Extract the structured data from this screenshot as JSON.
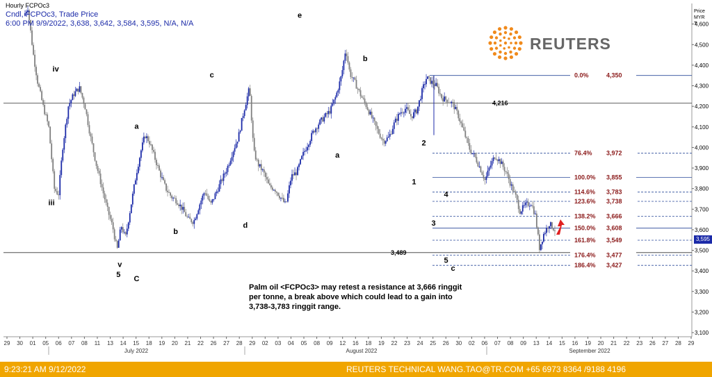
{
  "header": {
    "title": "Hourly FCPOc3",
    "line1": "Cndl, FCPOc3, Trade Price",
    "line2": "6:00 PM 9/9/2022, 3,638, 3,642, 3,584, 3,595, N/A, N/A"
  },
  "logo": {
    "text": "REUTERS",
    "color": "#f08a1c",
    "icon": "reuters-dot-logo-icon"
  },
  "yaxis": {
    "label_line1": "Price",
    "label_line2": "MYR",
    "label_line3": "T",
    "last_price_badge": "3,595"
  },
  "annotation": {
    "text_line1": "Palm oil <FCPOc3> may retest a resistance at 3,666 ringgit",
    "text_line2": "per tonne,  a break above which could lead to a gain into",
    "text_line3": " 3,738-3,783 ringgit range."
  },
  "footer": {
    "timestamp": "9:23:21 AM 9/12/2022",
    "credit": "REUTERS TECHNICAL  WANG.TAO@TR.COM  +65 6973 8364 /9188 4196",
    "background": "#f0a500"
  },
  "chart_data": {
    "type": "candlestick",
    "title": "Hourly FCPOc3",
    "ylabel": "Price MYR T",
    "ylim": [
      3080,
      4700
    ],
    "yticks": [
      3100,
      3200,
      3300,
      3400,
      3500,
      3600,
      3700,
      3800,
      3900,
      4000,
      4100,
      4200,
      4300,
      4400,
      4500,
      4600
    ],
    "ytick_labels": [
      "3,100",
      "3,200",
      "3,300",
      "3,400",
      "3,500",
      "3,600",
      "3,700",
      "3,800",
      "3,900",
      "4,000",
      "4,100",
      "4,200",
      "4,300",
      "4,400",
      "4,500",
      "4,600"
    ],
    "xtick_labels": [
      "29",
      "30",
      "01",
      "05",
      "06",
      "07",
      "08",
      "11",
      "13",
      "14",
      "15",
      "18",
      "19",
      "20",
      "21",
      "22",
      "26",
      "27",
      "28",
      "29",
      "02",
      "03",
      "04",
      "05",
      "08",
      "09",
      "12",
      "16",
      "18",
      "19",
      "22",
      "23",
      "24",
      "25",
      "26",
      "30",
      "02",
      "06",
      "07",
      "08",
      "09",
      "13",
      "14",
      "15",
      "16",
      "19",
      "20",
      "21",
      "22",
      "23",
      "26",
      "27",
      "28",
      "29"
    ],
    "month_labels": [
      "July 2022",
      "August 2022",
      "September 2022"
    ],
    "candle_color_up": "#1b2aa8",
    "candle_color_down": "#7f7f7f",
    "path_points": [
      [
        0,
        4640
      ],
      [
        3,
        4680
      ],
      [
        7,
        4450
      ],
      [
        10,
        4320
      ],
      [
        14,
        4200
      ],
      [
        18,
        4100
      ],
      [
        22,
        3800
      ],
      [
        25,
        3770
      ],
      [
        28,
        4000
      ],
      [
        32,
        4200
      ],
      [
        36,
        4260
      ],
      [
        40,
        4290
      ],
      [
        44,
        4200
      ],
      [
        48,
        4050
      ],
      [
        52,
        3920
      ],
      [
        56,
        3810
      ],
      [
        60,
        3700
      ],
      [
        64,
        3610
      ],
      [
        67,
        3500
      ],
      [
        70,
        3620
      ],
      [
        73,
        3560
      ],
      [
        77,
        3720
      ],
      [
        81,
        3880
      ],
      [
        84,
        3980
      ],
      [
        87,
        4060
      ],
      [
        90,
        4030
      ],
      [
        94,
        3950
      ],
      [
        98,
        3870
      ],
      [
        102,
        3800
      ],
      [
        106,
        3760
      ],
      [
        110,
        3740
      ],
      [
        114,
        3700
      ],
      [
        118,
        3650
      ],
      [
        122,
        3640
      ],
      [
        126,
        3720
      ],
      [
        130,
        3790
      ],
      [
        134,
        3720
      ],
      [
        138,
        3780
      ],
      [
        142,
        3840
      ],
      [
        146,
        3900
      ],
      [
        150,
        3980
      ],
      [
        154,
        4050
      ],
      [
        158,
        4180
      ],
      [
        162,
        4290
      ],
      [
        165,
        3980
      ],
      [
        168,
        3920
      ],
      [
        172,
        3880
      ],
      [
        176,
        3810
      ],
      [
        180,
        3800
      ],
      [
        184,
        3760
      ],
      [
        188,
        3720
      ],
      [
        192,
        3860
      ],
      [
        196,
        3880
      ],
      [
        200,
        3960
      ],
      [
        204,
        4020
      ],
      [
        208,
        4080
      ],
      [
        212,
        4120
      ],
      [
        216,
        4150
      ],
      [
        220,
        4180
      ],
      [
        224,
        4250
      ],
      [
        228,
        4350
      ],
      [
        231,
        4480
      ],
      [
        234,
        4360
      ],
      [
        238,
        4310
      ],
      [
        242,
        4250
      ],
      [
        246,
        4200
      ],
      [
        250,
        4140
      ],
      [
        254,
        4080
      ],
      [
        258,
        4030
      ],
      [
        262,
        4050
      ],
      [
        266,
        4120
      ],
      [
        270,
        4170
      ],
      [
        274,
        4190
      ],
      [
        278,
        4150
      ],
      [
        282,
        4180
      ],
      [
        286,
        4280
      ],
      [
        289,
        4340
      ],
      [
        292,
        4320
      ],
      [
        296,
        4300
      ],
      [
        300,
        4240
      ],
      [
        304,
        4230
      ],
      [
        308,
        4210
      ],
      [
        312,
        4150
      ],
      [
        316,
        4070
      ],
      [
        320,
        3990
      ],
      [
        324,
        3950
      ],
      [
        328,
        3890
      ],
      [
        331,
        3840
      ],
      [
        334,
        3900
      ],
      [
        338,
        3960
      ],
      [
        342,
        3930
      ],
      [
        346,
        3880
      ],
      [
        350,
        3810
      ],
      [
        353,
        3760
      ],
      [
        356,
        3690
      ],
      [
        360,
        3720
      ],
      [
        364,
        3730
      ],
      [
        367,
        3670
      ],
      [
        370,
        3510
      ],
      [
        373,
        3580
      ],
      [
        377,
        3630
      ],
      [
        381,
        3600
      ]
    ],
    "fib_levels": [
      {
        "label": "0.0%",
        "value": 4350,
        "value_label": "4,350",
        "style": "solid"
      },
      {
        "label": "76.4%",
        "value": 3972,
        "value_label": "3,972",
        "style": "dashed"
      },
      {
        "label": "100.0%",
        "value": 3855,
        "value_label": "3,855",
        "style": "solid"
      },
      {
        "label": "114.6%",
        "value": 3783,
        "value_label": "3,783",
        "style": "dashed"
      },
      {
        "label": "123.6%",
        "value": 3738,
        "value_label": "3,738",
        "style": "dashed"
      },
      {
        "label": "138.2%",
        "value": 3666,
        "value_label": "3,666",
        "style": "dashed"
      },
      {
        "label": "150.0%",
        "value": 3608,
        "value_label": "3,608",
        "style": "solid"
      },
      {
        "label": "161.8%",
        "value": 3549,
        "value_label": "3,549",
        "style": "dashed"
      },
      {
        "label": "176.4%",
        "value": 3477,
        "value_label": "3,477",
        "style": "dashed"
      },
      {
        "label": "186.4%",
        "value": 3427,
        "value_label": "3,427",
        "style": "dashed"
      }
    ],
    "horizontal_levels": [
      {
        "value": 4216,
        "label": "4,216"
      },
      {
        "value": 3489,
        "label": "3,489"
      }
    ],
    "wave_labels": [
      {
        "text": "iv",
        "x": 22,
        "price": 4370
      },
      {
        "text": "iii",
        "x": 19,
        "price": 3720
      },
      {
        "text": "v",
        "x": 68,
        "price": 3420
      },
      {
        "text": "5",
        "x": 67,
        "price": 3370
      },
      {
        "text": "C",
        "x": 80,
        "price": 3350
      },
      {
        "text": "a",
        "x": 80,
        "price": 4090
      },
      {
        "text": "b",
        "x": 108,
        "price": 3580
      },
      {
        "text": "c",
        "x": 134,
        "price": 4340
      },
      {
        "text": "d",
        "x": 158,
        "price": 3610
      },
      {
        "text": "e",
        "x": 197,
        "price": 4630
      },
      {
        "text": "a",
        "x": 224,
        "price": 3950
      },
      {
        "text": "b",
        "x": 244,
        "price": 4420
      },
      {
        "text": "1",
        "x": 279,
        "price": 3820
      },
      {
        "text": "2",
        "x": 286,
        "price": 4010
      },
      {
        "text": "3",
        "x": 293,
        "price": 3620
      },
      {
        "text": "4",
        "x": 302,
        "price": 3760
      },
      {
        "text": "5",
        "x": 302,
        "price": 3440
      },
      {
        "text": "c",
        "x": 307,
        "price": 3400
      }
    ]
  }
}
